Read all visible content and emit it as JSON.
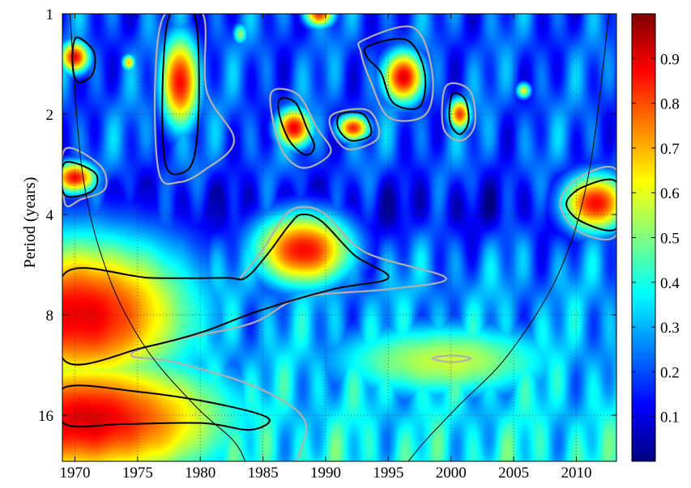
{
  "chart_data": {
    "type": "heatmap",
    "title": "",
    "xlabel": "",
    "ylabel": "Period (years)",
    "x_range": [
      1969,
      2013.2
    ],
    "y_range": [
      1,
      22
    ],
    "y_scale": "log2",
    "y_inverted": true,
    "x_ticks": [
      1970,
      1975,
      1980,
      1985,
      1990,
      1995,
      2000,
      2005,
      2010
    ],
    "x_tick_labels": [
      "1970",
      "1975",
      "1980",
      "1985",
      "1990",
      "1995",
      "2000",
      "2005",
      "2010"
    ],
    "y_ticks": [
      1,
      2,
      4,
      8,
      16
    ],
    "y_tick_labels": [
      "1",
      "2",
      "4",
      "8",
      "16"
    ],
    "grid": "dotted",
    "colormap": "jet",
    "colorbar": {
      "range": [
        0,
        1
      ],
      "ticks": [
        0.1,
        0.2,
        0.3,
        0.4,
        0.5,
        0.6,
        0.7,
        0.8,
        0.9
      ],
      "tick_labels": [
        "0.1",
        "0.2",
        "0.3",
        "0.4",
        "0.5",
        "0.6",
        "0.7",
        "0.8",
        "0.9"
      ],
      "placement": "right"
    },
    "blobs": [
      {
        "x": 1970,
        "p": 1.35,
        "sx": 0.9,
        "sy": 0.12,
        "a": 0.95
      },
      {
        "x": 1970,
        "p": 3.1,
        "sx": 1.3,
        "sy": 0.12,
        "a": 0.95
      },
      {
        "x": 1978.4,
        "p": 1.6,
        "sx": 1.2,
        "sy": 0.35,
        "a": 0.96
      },
      {
        "x": 1974.3,
        "p": 1.4,
        "sx": 0.4,
        "sy": 0.06,
        "a": 0.72
      },
      {
        "x": 1987.5,
        "p": 2.2,
        "sx": 1.1,
        "sy": 0.15,
        "a": 0.96
      },
      {
        "x": 1992.2,
        "p": 2.2,
        "sx": 1.0,
        "sy": 0.1,
        "a": 0.9
      },
      {
        "x": 1996.2,
        "p": 1.55,
        "sx": 1.3,
        "sy": 0.2,
        "a": 0.96
      },
      {
        "x": 1989.5,
        "p": 1.0,
        "sx": 0.9,
        "sy": 0.1,
        "a": 0.9
      },
      {
        "x": 2000.7,
        "p": 2.0,
        "sx": 0.7,
        "sy": 0.12,
        "a": 0.88
      },
      {
        "x": 2005.8,
        "p": 1.7,
        "sx": 0.45,
        "sy": 0.06,
        "a": 0.65
      },
      {
        "x": 1983.2,
        "p": 1.15,
        "sx": 0.45,
        "sy": 0.08,
        "a": 0.55
      },
      {
        "x": 2011.5,
        "p": 3.7,
        "sx": 2.0,
        "sy": 0.22,
        "a": 0.96
      },
      {
        "x": 1988.2,
        "p": 5.1,
        "sx": 3.0,
        "sy": 0.28,
        "a": 0.95
      },
      {
        "x": 1970.5,
        "p": 8.0,
        "sx": 7.0,
        "sy": 0.6,
        "a": 0.97
      },
      {
        "x": 1971.0,
        "p": 16.5,
        "sx": 9.0,
        "sy": 0.5,
        "a": 0.97
      },
      {
        "x": 1999.5,
        "p": 11.0,
        "sx": 7.5,
        "sy": 0.3,
        "a": 0.6
      }
    ],
    "contours_95": [
      [
        [
          1970.1,
          1.18
        ],
        [
          1971.5,
          1.3
        ],
        [
          1971.4,
          1.52
        ],
        [
          1970.2,
          1.6
        ],
        [
          1969.8,
          1.4
        ]
      ],
      [
        [
          1969.2,
          2.8
        ],
        [
          1971.6,
          3.0
        ],
        [
          1971.4,
          3.4
        ],
        [
          1969.2,
          3.5
        ]
      ],
      [
        [
          1977.6,
          1.0
        ],
        [
          1979.5,
          1.0
        ],
        [
          1979.9,
          1.6
        ],
        [
          1979.6,
          2.6
        ],
        [
          1978.6,
          3.0
        ],
        [
          1977.2,
          2.8
        ],
        [
          1977.0,
          1.6
        ]
      ],
      [
        [
          1986.4,
          1.8
        ],
        [
          1987.6,
          1.85
        ],
        [
          1988.5,
          2.2
        ],
        [
          1989.1,
          2.5
        ],
        [
          1988.4,
          2.65
        ],
        [
          1987.1,
          2.4
        ],
        [
          1986.3,
          2.0
        ]
      ],
      [
        [
          1991.2,
          2.0
        ],
        [
          1993.0,
          2.0
        ],
        [
          1993.6,
          2.3
        ],
        [
          1992.0,
          2.4
        ],
        [
          1991.0,
          2.2
        ]
      ],
      [
        [
          1993.4,
          1.25
        ],
        [
          1996.5,
          1.2
        ],
        [
          1997.9,
          1.5
        ],
        [
          1997.5,
          1.9
        ],
        [
          1995.4,
          1.85
        ],
        [
          1994.4,
          1.5
        ],
        [
          1993.3,
          1.35
        ]
      ],
      [
        [
          2000.1,
          1.75
        ],
        [
          2001.1,
          1.8
        ],
        [
          2001.4,
          2.1
        ],
        [
          2000.7,
          2.3
        ],
        [
          1999.9,
          2.1
        ]
      ],
      [
        [
          2013.2,
          3.2
        ],
        [
          2010.6,
          3.3
        ],
        [
          2009.2,
          3.7
        ],
        [
          2010.4,
          4.2
        ],
        [
          2013.2,
          4.4
        ]
      ],
      [
        [
          1983.6,
          6.2
        ],
        [
          1985.3,
          5.3
        ],
        [
          1987.1,
          4.3
        ],
        [
          1988.1,
          4.0
        ],
        [
          1989.7,
          4.2
        ],
        [
          1992.3,
          5.3
        ],
        [
          1995.0,
          6.2
        ],
        [
          1990.6,
          6.7
        ],
        [
          1984.6,
          7.8
        ],
        [
          1980.2,
          9.0
        ],
        [
          1975.6,
          10.0
        ],
        [
          1969.2,
          11.0
        ],
        [
          1969.2,
          6.0
        ],
        [
          1976.0,
          6.2
        ],
        [
          1982.0,
          6.2
        ]
      ],
      [
        [
          1969.2,
          13.2
        ],
        [
          1975.0,
          13.6
        ],
        [
          1981.0,
          14.7
        ],
        [
          1985.4,
          16.3
        ],
        [
          1984.0,
          17.7
        ],
        [
          1980.2,
          16.9
        ],
        [
          1974.0,
          17.0
        ],
        [
          1969.2,
          17.0
        ]
      ]
    ],
    "contours_90": [
      [
        [
          1983.2,
          6.2
        ],
        [
          1985.0,
          5.1
        ],
        [
          1986.7,
          4.05
        ],
        [
          1988.1,
          3.8
        ],
        [
          1990.0,
          4.0
        ],
        [
          1993.2,
          5.2
        ],
        [
          1999.6,
          6.2
        ],
        [
          1995.0,
          6.7
        ],
        [
          1988.1,
          7.1
        ],
        [
          1984.0,
          8.5
        ],
        [
          1977.0,
          9.7
        ],
        [
          1974.5,
          10.6
        ],
        [
          1978.0,
          11.1
        ],
        [
          1984.5,
          13.2
        ],
        [
          1988.3,
          16.5
        ],
        [
          1987.7,
          22.0
        ]
      ],
      [
        [
          1998.5,
          10.8
        ],
        [
          2000.1,
          10.6
        ],
        [
          2001.6,
          10.8
        ],
        [
          2000.1,
          11.1
        ]
      ],
      [
        [
          2013.2,
          2.95
        ],
        [
          2010.2,
          3.1
        ],
        [
          2008.7,
          3.7
        ],
        [
          2010.2,
          4.5
        ],
        [
          2013.2,
          4.6
        ]
      ],
      [
        [
          1969.2,
          2.55
        ],
        [
          1972.0,
          2.85
        ],
        [
          1972.4,
          3.35
        ],
        [
          1970.5,
          3.6
        ],
        [
          1969.2,
          3.7
        ]
      ],
      [
        [
          1977.2,
          1.0
        ],
        [
          1980.2,
          1.0
        ],
        [
          1980.5,
          1.7
        ],
        [
          1982.7,
          2.4
        ],
        [
          1980.3,
          2.95
        ],
        [
          1978.3,
          3.2
        ],
        [
          1976.7,
          3.0
        ],
        [
          1976.4,
          1.6
        ]
      ],
      [
        [
          1985.8,
          1.7
        ],
        [
          1987.8,
          1.75
        ],
        [
          1989.3,
          2.2
        ],
        [
          1990.4,
          2.6
        ],
        [
          1988.3,
          2.9
        ],
        [
          1986.6,
          2.6
        ],
        [
          1985.7,
          2.0
        ]
      ],
      [
        [
          1993.0,
          1.2
        ],
        [
          1997.0,
          1.1
        ],
        [
          1998.5,
          1.5
        ],
        [
          1998.0,
          2.0
        ],
        [
          1995.1,
          2.05
        ],
        [
          1993.6,
          1.6
        ],
        [
          1992.8,
          1.3
        ]
      ],
      [
        [
          1999.6,
          1.65
        ],
        [
          2001.5,
          1.7
        ],
        [
          2001.9,
          2.15
        ],
        [
          2000.8,
          2.4
        ],
        [
          1999.4,
          2.2
        ]
      ],
      [
        [
          1990.6,
          2.0
        ],
        [
          1993.4,
          1.95
        ],
        [
          1994.2,
          2.35
        ],
        [
          1991.8,
          2.55
        ],
        [
          1990.5,
          2.25
        ]
      ]
    ],
    "coi": {
      "left": [
        [
          1969.6,
          1.0
        ],
        [
          1970.6,
          3.0
        ],
        [
          1972.6,
          6.0
        ],
        [
          1975.6,
          10.0
        ],
        [
          1979.6,
          15.0
        ],
        [
          1982.6,
          19.0
        ],
        [
          1983.6,
          22.0
        ]
      ],
      "right": [
        [
          2012.6,
          1.0
        ],
        [
          2011.0,
          3.0
        ],
        [
          2008.6,
          6.0
        ],
        [
          2004.6,
          10.5
        ],
        [
          2000.6,
          15.0
        ],
        [
          1998.0,
          19.0
        ],
        [
          1996.6,
          22.0
        ]
      ]
    }
  }
}
